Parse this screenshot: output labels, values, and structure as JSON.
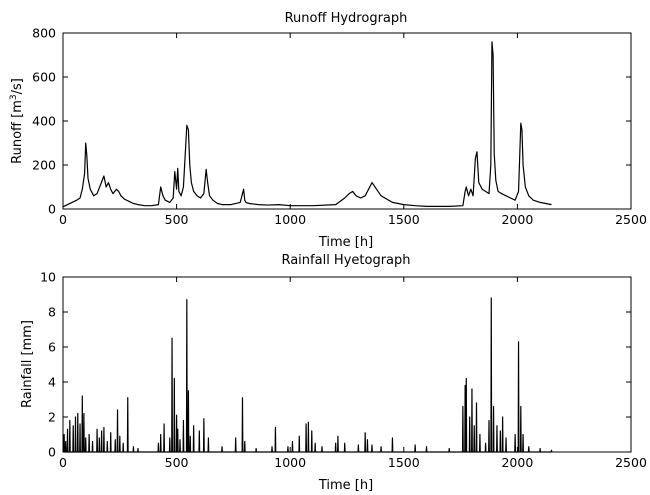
{
  "chart_data": [
    {
      "type": "line",
      "title": "Runoff Hydrograph",
      "xlabel": "Time [h]",
      "ylabel_main": "Runoff [m",
      "ylabel_sup": "3",
      "ylabel_tail": "/s]",
      "xlim": [
        0,
        2500
      ],
      "ylim": [
        0,
        800
      ],
      "xticks": [
        0,
        500,
        1000,
        1500,
        2000,
        2500
      ],
      "yticks": [
        0,
        200,
        400,
        600,
        800
      ],
      "grid": false,
      "color": "#000000",
      "series": [
        {
          "x": [
            0,
            20,
            40,
            60,
            75,
            85,
            95,
            100,
            105,
            110,
            120,
            135,
            150,
            165,
            180,
            190,
            200,
            210,
            220,
            235,
            245,
            255,
            270,
            290,
            310,
            330,
            360,
            390,
            420,
            430,
            440,
            450,
            470,
            485,
            492,
            500,
            505,
            510,
            520,
            530,
            545,
            552,
            558,
            565,
            575,
            590,
            605,
            620,
            630,
            638,
            645,
            660,
            680,
            700,
            740,
            780,
            795,
            800,
            805,
            820,
            860,
            900,
            950,
            1000,
            1100,
            1200,
            1240,
            1260,
            1275,
            1290,
            1310,
            1330,
            1350,
            1360,
            1380,
            1400,
            1450,
            1500,
            1550,
            1600,
            1650,
            1700,
            1760,
            1770,
            1775,
            1785,
            1795,
            1805,
            1815,
            1822,
            1830,
            1845,
            1860,
            1875,
            1883,
            1888,
            1893,
            1898,
            1905,
            1915,
            1930,
            1950,
            1970,
            1990,
            2005,
            2015,
            2020,
            2025,
            2035,
            2050,
            2070,
            2100,
            2150
          ],
          "y": [
            10,
            20,
            30,
            40,
            50,
            90,
            160,
            300,
            240,
            140,
            90,
            60,
            70,
            110,
            150,
            100,
            120,
            90,
            70,
            90,
            80,
            60,
            45,
            35,
            25,
            20,
            15,
            15,
            20,
            100,
            60,
            40,
            30,
            50,
            170,
            90,
            185,
            80,
            60,
            100,
            380,
            360,
            200,
            120,
            80,
            60,
            50,
            70,
            180,
            110,
            60,
            40,
            25,
            20,
            20,
            30,
            90,
            40,
            30,
            25,
            20,
            18,
            20,
            15,
            15,
            20,
            50,
            70,
            80,
            60,
            50,
            60,
            100,
            120,
            90,
            60,
            30,
            20,
            15,
            12,
            12,
            12,
            15,
            80,
            100,
            60,
            90,
            60,
            230,
            260,
            120,
            90,
            80,
            70,
            200,
            760,
            700,
            250,
            130,
            80,
            70,
            60,
            50,
            40,
            80,
            390,
            360,
            200,
            100,
            60,
            40,
            30,
            20
          ]
        }
      ]
    },
    {
      "type": "line",
      "title": "Rainfall Hyetograph",
      "xlabel": "Time [h]",
      "ylabel": "Rainfall [mm]",
      "xlim": [
        0,
        2500
      ],
      "ylim": [
        0,
        10
      ],
      "xticks": [
        0,
        500,
        1000,
        1500,
        2000,
        2500
      ],
      "yticks": [
        0,
        2,
        4,
        6,
        8,
        10
      ],
      "grid": false,
      "color": "#000000",
      "series": [
        {
          "x": [
            5,
            12,
            20,
            30,
            45,
            55,
            65,
            75,
            85,
            92,
            100,
            115,
            130,
            150,
            160,
            170,
            180,
            195,
            210,
            230,
            240,
            250,
            265,
            285,
            310,
            330,
            420,
            430,
            445,
            470,
            480,
            490,
            500,
            505,
            515,
            530,
            545,
            552,
            560,
            575,
            600,
            620,
            640,
            700,
            760,
            790,
            800,
            850,
            920,
            935,
            990,
            1010,
            1040,
            1070,
            1080,
            1095,
            1110,
            1140,
            1200,
            1210,
            1240,
            1300,
            1330,
            1340,
            1360,
            1400,
            1450,
            1550,
            1600,
            1700,
            1760,
            1770,
            1775,
            1790,
            1800,
            1810,
            1820,
            1835,
            1860,
            1875,
            1885,
            1895,
            1910,
            1925,
            1935,
            1950,
            1990,
            2005,
            2015,
            2025,
            2050,
            2100,
            2150
          ],
          "y": [
            1.0,
            0.6,
            1.3,
            1.8,
            1.5,
            2.0,
            2.2,
            1.6,
            3.2,
            2.2,
            0.8,
            1.0,
            0.6,
            1.3,
            0.8,
            1.2,
            1.4,
            0.6,
            1.1,
            0.7,
            2.4,
            0.9,
            0.5,
            3.1,
            0.3,
            0.2,
            0.5,
            1.0,
            1.6,
            0.8,
            6.5,
            4.2,
            2.1,
            1.3,
            0.7,
            1.8,
            8.7,
            3.5,
            0.9,
            1.5,
            1.2,
            1.9,
            0.8,
            0.3,
            0.8,
            3.1,
            0.6,
            0.2,
            0.3,
            1.4,
            0.3,
            0.6,
            0.9,
            1.6,
            1.7,
            1.2,
            0.5,
            0.3,
            0.5,
            0.9,
            0.5,
            0.4,
            1.1,
            0.7,
            0.4,
            0.3,
            0.8,
            0.4,
            0.3,
            0.2,
            2.6,
            3.8,
            4.2,
            2.0,
            3.6,
            1.5,
            2.8,
            1.0,
            0.5,
            1.8,
            8.8,
            2.6,
            1.5,
            1.2,
            2.0,
            0.8,
            1.0,
            6.3,
            2.6,
            1.0,
            0.3,
            0.2,
            0.1
          ]
        }
      ]
    }
  ]
}
